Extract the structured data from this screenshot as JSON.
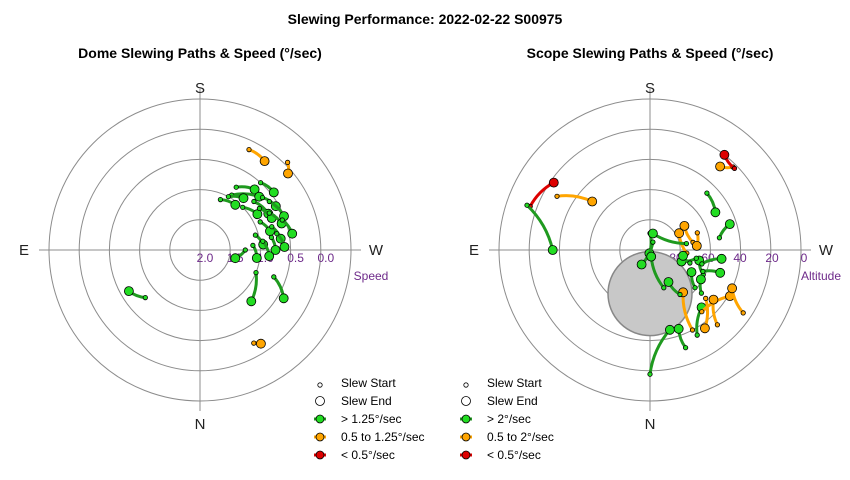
{
  "title": "Slewing Performance: 2022-02-22 S00975",
  "colors": {
    "fast": "#1f9a1f",
    "fast_fill": "#22dd22",
    "mid": "#ffa500",
    "slow": "#dd0000",
    "grid": "#8c8c8c",
    "tick": "#6e2a8a",
    "moon_fill": "#c8c8c8"
  },
  "chart_data": [
    {
      "type": "scatter",
      "subtype": "polar",
      "title": "Dome Slewing Paths & Speed (°/sec)",
      "cardinals": {
        "top": "S",
        "bottom": "N",
        "left": "E",
        "right": "W"
      },
      "radial_axis_label": "Speed",
      "radial_ticks": [
        "2.0",
        "1.5",
        "1.0",
        "0.5",
        "0.0"
      ],
      "legend": [
        {
          "label": "Slew Start",
          "kind": "start"
        },
        {
          "label": "Slew End",
          "kind": "end"
        },
        {
          "label": "> 1.25°/sec",
          "kind": "fast"
        },
        {
          "label": "0.5 to 1.25°/sec",
          "kind": "mid"
        },
        {
          "label": "< 0.5°/sec",
          "kind": "slow"
        }
      ],
      "slews": [
        {
          "az": 36,
          "r": 1.82,
          "az0": 26,
          "r0": 1.85,
          "speed": "mid"
        },
        {
          "az": 49,
          "r": 1.93,
          "az0": 45,
          "r0": 2.05,
          "speed": "mid"
        },
        {
          "az": 147,
          "r": 1.85,
          "az0": 150,
          "r0": 1.78,
          "speed": "mid"
        },
        {
          "az": 42,
          "r": 1.35,
          "az0": 30,
          "r0": 1.2,
          "speed": "fast"
        },
        {
          "az": 52,
          "r": 1.55,
          "az0": 42,
          "r0": 1.5,
          "speed": "fast"
        },
        {
          "az": 48,
          "r": 1.32,
          "az0": 30,
          "r0": 1.05,
          "speed": "fast"
        },
        {
          "az": 40,
          "r": 1.12,
          "az0": 28,
          "r0": 1.0,
          "speed": "fast"
        },
        {
          "az": 38,
          "r": 0.95,
          "az0": 22,
          "r0": 0.9,
          "speed": "fast"
        },
        {
          "az": 60,
          "r": 1.45,
          "az0": 50,
          "r0": 1.35,
          "speed": "fast"
        },
        {
          "az": 62,
          "r": 1.28,
          "az0": 48,
          "r0": 1.2,
          "speed": "fast"
        },
        {
          "az": 58,
          "r": 1.12,
          "az0": 45,
          "r0": 1.0,
          "speed": "fast"
        },
        {
          "az": 68,
          "r": 1.5,
          "az0": 55,
          "r0": 1.4,
          "speed": "fast"
        },
        {
          "az": 66,
          "r": 1.3,
          "az0": 55,
          "r0": 1.2,
          "speed": "fast"
        },
        {
          "az": 72,
          "r": 1.42,
          "az0": 62,
          "r0": 1.3,
          "speed": "fast"
        },
        {
          "az": 75,
          "r": 1.2,
          "az0": 65,
          "r0": 1.1,
          "speed": "fast"
        },
        {
          "az": 80,
          "r": 1.55,
          "az0": 70,
          "r0": 1.45,
          "speed": "fast"
        },
        {
          "az": 82,
          "r": 1.35,
          "az0": 72,
          "r0": 1.25,
          "speed": "fast"
        },
        {
          "az": 85,
          "r": 1.05,
          "az0": 75,
          "r0": 0.95,
          "speed": "fast"
        },
        {
          "az": 88,
          "r": 1.4,
          "az0": 78,
          "r0": 1.3,
          "speed": "fast"
        },
        {
          "az": 90,
          "r": 1.25,
          "az0": 80,
          "r0": 1.2,
          "speed": "fast"
        },
        {
          "az": 95,
          "r": 1.15,
          "az0": 82,
          "r0": 1.05,
          "speed": "fast"
        },
        {
          "az": 98,
          "r": 0.95,
          "az0": 85,
          "r0": 0.88,
          "speed": "fast"
        },
        {
          "az": 103,
          "r": 0.6,
          "az0": 90,
          "r0": 0.75,
          "speed": "fast"
        },
        {
          "az": 120,
          "r": 1.6,
          "az0": 110,
          "r0": 1.3,
          "speed": "fast"
        },
        {
          "az": 135,
          "r": 1.2,
          "az0": 112,
          "r0": 1.0,
          "speed": "fast"
        },
        {
          "az": 240,
          "r": 1.36,
          "az0": 229,
          "r0": 1.2,
          "speed": "fast"
        }
      ]
    },
    {
      "type": "scatter",
      "subtype": "polar",
      "title": "Scope Slewing Paths & Speed (°/sec)",
      "cardinals": {
        "top": "S",
        "bottom": "N",
        "left": "E",
        "right": "W"
      },
      "radial_axis_label": "Altitude",
      "radial_ticks": [
        "80",
        "60",
        "40",
        "20",
        "0"
      ],
      "moon": {
        "az": 0,
        "alt": 64
      },
      "legend": [
        {
          "label": "Slew Start",
          "kind": "start"
        },
        {
          "label": "Slew End",
          "kind": "end"
        },
        {
          "label": "> 2°/sec",
          "kind": "fast"
        },
        {
          "label": "0.5 to 2°/sec",
          "kind": "mid"
        },
        {
          "label": "< 0.5°/sec",
          "kind": "slow"
        }
      ],
      "slews": [
        {
          "alt0": 16,
          "az0": 180,
          "alt": 41,
          "az": 166,
          "speed": "fast"
        },
        {
          "alt0": 32,
          "az0": 151,
          "alt": 44,
          "az": 138,
          "speed": "fast"
        },
        {
          "alt0": 36,
          "az0": 152,
          "alt": 58,
          "az": 142,
          "speed": "mid"
        },
        {
          "alt0": 55,
          "az0": 130,
          "alt": 62,
          "az": 118,
          "speed": "fast"
        },
        {
          "alt0": 46,
          "az0": 131,
          "alt": 33,
          "az": 145,
          "speed": "mid"
        },
        {
          "alt0": 28,
          "az0": 160,
          "alt": 40,
          "az": 160,
          "speed": "fast"
        },
        {
          "alt0": 55,
          "az0": 115,
          "alt": 60,
          "az": 102,
          "speed": "fast"
        },
        {
          "alt0": 56,
          "az0": 112,
          "alt": 46,
          "az": 108,
          "speed": "fast"
        },
        {
          "alt0": 58,
          "az0": 105,
          "alt": 47,
          "az": 97,
          "speed": "fast"
        },
        {
          "alt0": 48,
          "az0": 80,
          "alt": 40,
          "az": 72,
          "speed": "fast"
        },
        {
          "alt0": 42,
          "az0": 45,
          "alt": 45,
          "az": 60,
          "speed": "fast"
        },
        {
          "alt0": 20,
          "az0": 45,
          "alt": 25,
          "az": 40,
          "speed": "mid"
        },
        {
          "alt0": 20,
          "az0": 46,
          "alt": 18,
          "az": 38,
          "speed": "slow"
        },
        {
          "alt0": 14,
          "az0": 290,
          "alt": 20,
          "az": 305,
          "speed": "slow"
        },
        {
          "alt0": 12,
          "az0": 290,
          "alt": 32,
          "az": 270,
          "speed": "fast"
        },
        {
          "alt0": 26,
          "az0": 300,
          "alt": 45,
          "az": 310,
          "speed": "mid"
        },
        {
          "alt0": 80,
          "az0": 0,
          "alt": 88,
          "az": 190,
          "speed": "fast"
        },
        {
          "alt0": 85,
          "az0": 20,
          "alt": 80,
          "az": 210,
          "speed": "fast"
        },
        {
          "alt0": 68,
          "az0": 95,
          "alt": 70,
          "az": 60,
          "speed": "mid"
        },
        {
          "alt0": 64,
          "az0": 80,
          "alt": 65,
          "az": 55,
          "speed": "mid"
        },
        {
          "alt0": 62,
          "az0": 100,
          "alt": 70,
          "az": 110,
          "speed": "fast"
        },
        {
          "alt0": 50,
          "az0": 130,
          "alt": 55,
          "az": 120,
          "speed": "fast"
        },
        {
          "alt0": 42,
          "az0": 140,
          "alt": 35,
          "az": 120,
          "speed": "mid"
        },
        {
          "alt0": 30,
          "az0": 138,
          "alt": 42,
          "az": 128,
          "speed": "mid"
        },
        {
          "alt0": 23,
          "az0": 124,
          "alt": 36,
          "az": 115,
          "speed": "mid"
        },
        {
          "alt0": 60,
          "az0": 70,
          "alt": 62,
          "az": 85,
          "speed": "mid"
        },
        {
          "alt0": 66,
          "az0": 160,
          "alt": 86,
          "az": 170,
          "speed": "fast"
        },
        {
          "alt0": 58,
          "az0": 146,
          "alt": 68,
          "az": 150,
          "speed": "fast"
        },
        {
          "alt0": 68,
          "az0": 80,
          "alt": 80,
          "az": 10,
          "speed": "fast"
        },
        {
          "alt0": 65,
          "az0": 108,
          "alt": 70,
          "az": 100,
          "speed": "fast"
        }
      ]
    }
  ]
}
